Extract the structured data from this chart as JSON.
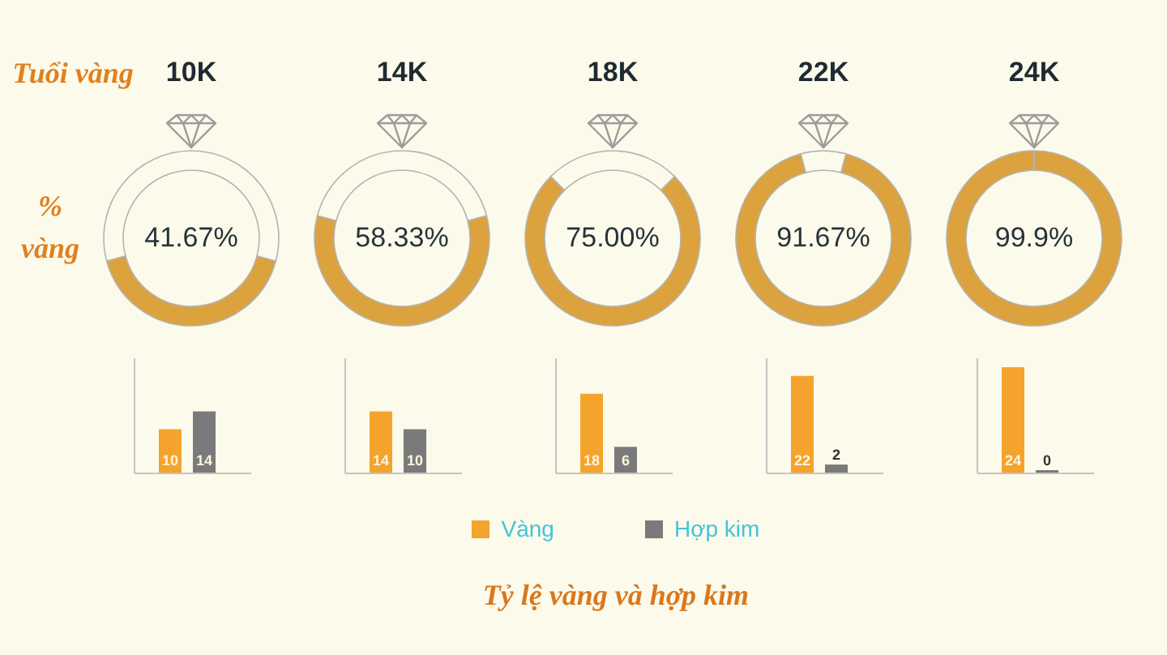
{
  "chart_data": [
    {
      "type": "other",
      "annotations": [
        "Tuổi vàng",
        "% vàng"
      ]
    },
    {
      "type": "donut",
      "title": "10K",
      "categories": [
        null,
        null
      ],
      "values": [
        41.67,
        58.33
      ],
      "colors": [
        "#dba23e",
        "#fcfaea"
      ],
      "annotations": [
        "41.67%"
      ]
    },
    {
      "type": "donut",
      "title": "14K",
      "categories": [
        null,
        null
      ],
      "values": [
        58.33,
        41.67
      ],
      "colors": [
        "#dba23e",
        "#fcfaea"
      ],
      "annotations": [
        "58.33%"
      ]
    },
    {
      "type": "donut",
      "title": "18K",
      "categories": [
        null,
        null
      ],
      "values": [
        75.0,
        25.0
      ],
      "colors": [
        "#dba23e",
        "#fcfaea"
      ],
      "annotations": [
        "75.00%"
      ]
    },
    {
      "type": "donut",
      "title": "22K",
      "categories": [
        null,
        null
      ],
      "values": [
        91.67,
        8.33
      ],
      "colors": [
        "#dba23e",
        "#fcfaea"
      ],
      "annotations": [
        "91.67%"
      ]
    },
    {
      "type": "donut",
      "title": "24K",
      "categories": [
        null,
        null
      ],
      "values": [
        99.9,
        0.1
      ],
      "colors": [
        "#dba23e",
        "#fcfaea"
      ],
      "annotations": [
        "99.9%"
      ]
    },
    {
      "type": "bar",
      "categories": [
        null
      ],
      "series": [
        {
          "color": "#f4a42c",
          "values": [
            10
          ]
        },
        {
          "color": "#7a7a7a",
          "values": [
            14
          ]
        }
      ],
      "ylim": [
        0,
        26
      ],
      "tick_labels": false,
      "data_labels": true
    },
    {
      "type": "bar",
      "categories": [
        null
      ],
      "series": [
        {
          "color": "#f4a42c",
          "values": [
            14
          ]
        },
        {
          "color": "#7a7a7a",
          "values": [
            10
          ]
        }
      ],
      "ylim": [
        0,
        26
      ],
      "tick_labels": false,
      "data_labels": true
    },
    {
      "type": "bar",
      "categories": [
        null
      ],
      "series": [
        {
          "name": "Vàng",
          "color": "#f4a42c",
          "values": [
            18
          ]
        },
        {
          "name": "Hợp kim",
          "color": "#7a7a7a",
          "values": [
            6
          ]
        }
      ],
      "ylim": [
        0,
        26
      ],
      "tick_labels": false,
      "data_labels": true,
      "legend": "bottom",
      "annotations": [
        "Tỷ lệ vàng và hợp kim"
      ]
    },
    {
      "type": "bar",
      "categories": [
        null
      ],
      "series": [
        {
          "color": "#f4a42c",
          "values": [
            22
          ]
        },
        {
          "color": "#7a7a7a",
          "values": [
            2
          ]
        }
      ],
      "ylim": [
        0,
        26
      ],
      "tick_labels": false,
      "data_labels": true
    },
    {
      "type": "bar",
      "categories": [
        null
      ],
      "series": [
        {
          "color": "#f4a42c",
          "values": [
            24
          ]
        },
        {
          "color": "#7a7a7a",
          "values": [
            0
          ]
        }
      ],
      "ylim": [
        0,
        26
      ],
      "tick_labels": false,
      "data_labels": true
    }
  ]
}
